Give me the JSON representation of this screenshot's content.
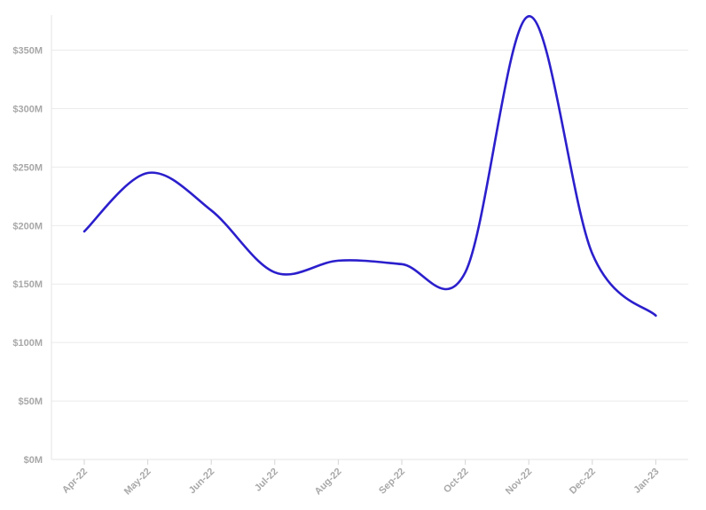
{
  "chart_data": {
    "type": "line",
    "title": "",
    "xlabel": "",
    "ylabel": "",
    "categories": [
      "Apr-22",
      "May-22",
      "Jun-22",
      "Jul-22",
      "Aug-22",
      "Sep-22",
      "Oct-22",
      "Nov-22",
      "Dec-22",
      "Jan-23"
    ],
    "x_ticks": [
      "Apr-22",
      "May-22",
      "Jun-22",
      "Jul-22",
      "Aug-22",
      "Sep-22",
      "Oct-22",
      "Nov-22",
      "Dec-22",
      "Jan-23"
    ],
    "y_ticks": [
      "$0M",
      "$50M",
      "$100M",
      "$150M",
      "$200M",
      "$250M",
      "$300M",
      "$350M"
    ],
    "ylim": [
      0,
      380
    ],
    "grid": "horizontal",
    "line_color": "#2b1fcc",
    "series": [
      {
        "points": [
          {
            "x": "2022-04-01",
            "y": 195
          },
          {
            "x": "2022-05-01",
            "y": 245
          },
          {
            "x": "2022-06-01",
            "y": 213
          },
          {
            "x": "2022-07-01",
            "y": 160
          },
          {
            "x": "2022-08-01",
            "y": 170
          },
          {
            "x": "2022-09-01",
            "y": 167
          },
          {
            "x": "2022-10-01",
            "y": 160
          },
          {
            "x": "2022-11-01",
            "y": 379
          },
          {
            "x": "2022-12-01",
            "y": 176
          },
          {
            "x": "2023-01-01",
            "y": 123
          }
        ]
      }
    ]
  }
}
